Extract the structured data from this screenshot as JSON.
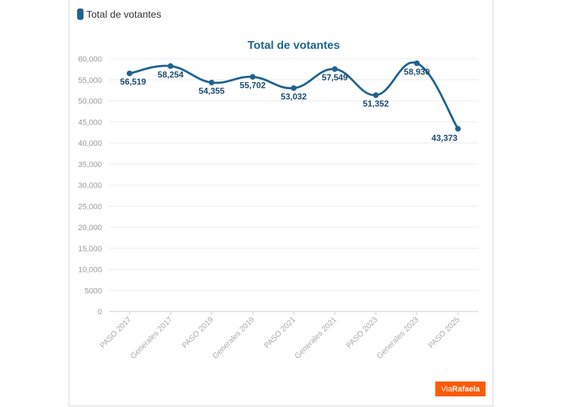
{
  "legend": {
    "label": "Total de votantes",
    "color": "#1f6391"
  },
  "brand": {
    "prefix": "Via",
    "name": "Rafaela",
    "color": "#ff5a0a"
  },
  "chart_data": {
    "type": "line",
    "title": "Total de votantes",
    "xlabel": "",
    "ylabel": "",
    "categories": [
      "PASO 2017",
      "Generales 2017",
      "PASO 2019",
      "Generales 2019",
      "PASO 2021",
      "Generales 2021",
      "PASO 2023",
      "Generales 2023",
      "PASO 2025"
    ],
    "series": [
      {
        "name": "Total de votantes",
        "values": [
          56519,
          58254,
          54355,
          55702,
          53032,
          57549,
          51352,
          58930,
          43373
        ],
        "color": "#1f6391"
      }
    ],
    "data_labels": [
      "56,519",
      "58,254",
      "54,355",
      "55,702",
      "53,032",
      "57,549",
      "51,352",
      "58,930",
      "43,373"
    ],
    "ylim": [
      0,
      60000
    ],
    "yticks": [
      0,
      5000,
      10000,
      15000,
      20000,
      25000,
      30000,
      35000,
      40000,
      45000,
      50000,
      55000,
      60000
    ],
    "ytick_labels": [
      "0",
      "5000",
      "10,000",
      "15,000",
      "20,000",
      "25,000",
      "30,000",
      "35,000",
      "40,000",
      "45,000",
      "50,000",
      "55,000",
      "60,000"
    ],
    "grid": true,
    "smooth": true,
    "legend_position": "top-left"
  }
}
